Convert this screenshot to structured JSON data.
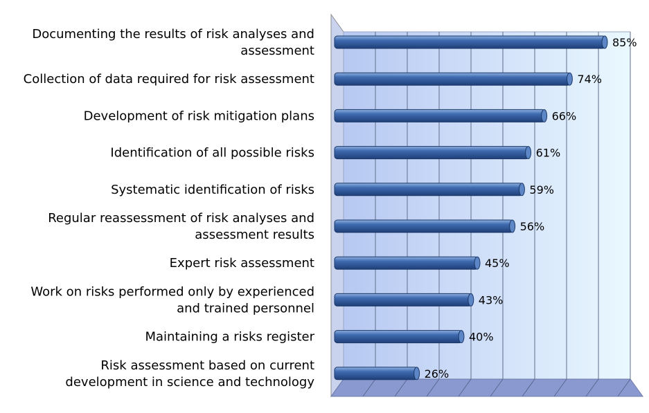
{
  "chart_data": {
    "type": "bar",
    "orientation": "horizontal",
    "categories": [
      [
        "Documenting the results of risk analyses and",
        "assessment"
      ],
      [
        "Collection of data required for risk assessment"
      ],
      [
        "Development of risk mitigation plans"
      ],
      [
        "Identification of all possible risks"
      ],
      [
        "Systematic identification of risks"
      ],
      [
        "Regular reassessment of risk analyses and",
        "assessment results"
      ],
      [
        "Expert risk assessment"
      ],
      [
        "Work on risks performed only by experienced",
        "and trained personnel"
      ],
      [
        "Maintaining a risks register"
      ],
      [
        "Risk assessment based on current",
        "development in science and technology"
      ]
    ],
    "values": [
      85,
      74,
      66,
      61,
      59,
      56,
      45,
      43,
      40,
      26
    ],
    "value_labels": [
      "85%",
      "74%",
      "66%",
      "61%",
      "59%",
      "56%",
      "45%",
      "43%",
      "40%",
      "26%"
    ],
    "xlim": [
      0,
      90
    ],
    "grid": true,
    "style": "3d-cylinder",
    "colors": {
      "bar": "#3f6bb0",
      "bar_light": "#8fb0e0",
      "bar_dark": "#1f3f78",
      "back_wall_left": "#b7c8f2",
      "back_wall_right": "#eaf8ff",
      "floor": "#8a9ad0",
      "grid": "#5e6e8a"
    }
  }
}
